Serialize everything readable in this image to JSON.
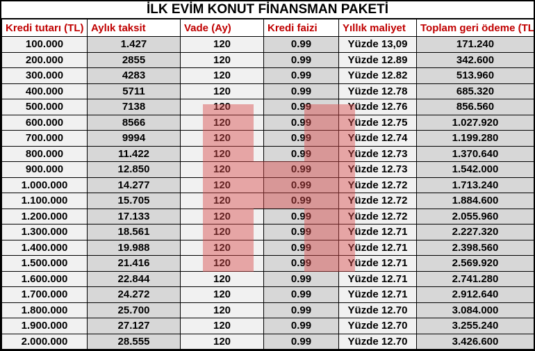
{
  "title": "İLK EVİM KONUT FİNANSMAN PAKETİ",
  "chart_data": {
    "type": "table",
    "title": "İLK EVİM KONUT FİNANSMAN PAKETİ",
    "columns": [
      "Kredi tutarı (TL)",
      "Aylık taksit",
      "Vade (Ay)",
      "Kredi faizi",
      "Yıllık maliyet",
      "Toplam geri ödeme (TL)"
    ],
    "rows": [
      [
        "100.000",
        "1.427",
        "120",
        "0.99",
        "Yüzde 13,09",
        "171.240"
      ],
      [
        "200.000",
        "2855",
        "120",
        "0.99",
        "Yüzde 12.89",
        "342.600"
      ],
      [
        "300.000",
        "4283",
        "120",
        "0.99",
        "Yüzde 12.82",
        "513.960"
      ],
      [
        "400.000",
        "5711",
        "120",
        "0.99",
        "Yüzde 12.78",
        "685.320"
      ],
      [
        "500.000",
        "7138",
        "120",
        "0.99",
        "Yüzde 12.76",
        "856.560"
      ],
      [
        "600.000",
        "8566",
        "120",
        "0.99",
        "Yüzde 12.75",
        "1.027.920"
      ],
      [
        "700.000",
        "9994",
        "120",
        "0.99",
        "Yüzde 12.74",
        "1.199.280"
      ],
      [
        "800.000",
        "11.422",
        "120",
        "0.99",
        "Yüzde 12.73",
        "1.370.640"
      ],
      [
        "900.000",
        "12.850",
        "120",
        "0.99",
        "Yüzde 12.73",
        "1.542.000"
      ],
      [
        "1.000.000",
        "14.277",
        "120",
        "0.99",
        "Yüzde 12.72",
        "1.713.240"
      ],
      [
        "1.100.000",
        "15.705",
        "120",
        "0.99",
        "Yüzde 12.72",
        "1.884.600"
      ],
      [
        "1.200.000",
        "17.133",
        "120",
        "0.99",
        "Yüzde 12.72",
        "2.055.960"
      ],
      [
        "1.300.000",
        "18.561",
        "120",
        "0.99",
        "Yüzde 12.71",
        "2.227.320"
      ],
      [
        "1.400.000",
        "19.988",
        "120",
        "0.99",
        "Yüzde 12.71",
        "2.398.560"
      ],
      [
        "1.500.000",
        "21.416",
        "120",
        "0.99",
        "Yüzde 12.71",
        "2.569.920"
      ],
      [
        "1.600.000",
        "22.844",
        "120",
        "0.99",
        "Yüzde 12.71",
        "2.741.280"
      ],
      [
        "1.700.000",
        "24.272",
        "120",
        "0.99",
        "Yüzde 12.71",
        "2.912.640"
      ],
      [
        "1.800.000",
        "25.700",
        "120",
        "0.99",
        "Yüzde 12.70",
        "3.084.000"
      ],
      [
        "1.900.000",
        "27.127",
        "120",
        "0.99",
        "Yüzde 12.70",
        "3.255.240"
      ],
      [
        "2.000.000",
        "28.555",
        "120",
        "0.99",
        "Yüzde 12.70",
        "3.426.600"
      ]
    ]
  },
  "colors": {
    "header_text": "#c00000",
    "column_light": "#f1f1f1",
    "column_dark": "#d7d7d7",
    "border": "#000000",
    "highlight": "#d94a4a"
  },
  "highlight": {
    "shape": "H",
    "color": "#d94a4a",
    "opacity": "0.45"
  }
}
